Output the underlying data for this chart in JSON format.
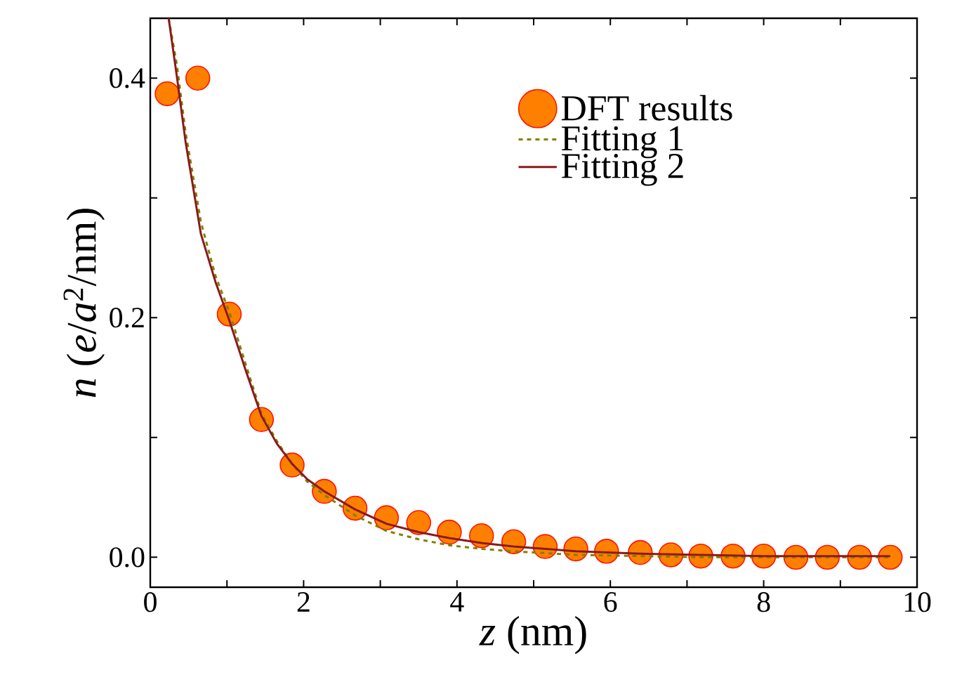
{
  "chart_data": {
    "type": "line",
    "xlabel": "*z* (nm)",
    "ylabel": "*n* (*e*/*a*$^{2}$/nm)",
    "xlim": [
      0,
      10
    ],
    "ylim": [
      -0.025,
      0.45
    ],
    "xticks": [
      0,
      {
        "value": 1,
        "label": null
      },
      2,
      {
        "value": 3,
        "label": null
      },
      4,
      {
        "value": 5,
        "label": null
      },
      6,
      {
        "value": 7,
        "label": null
      },
      8,
      {
        "value": 9,
        "label": null
      },
      10
    ],
    "yticks": [
      {
        "value": 0,
        "label": "0.0"
      },
      {
        "value": 0.1,
        "label": null
      },
      {
        "value": 0.2,
        "label": "0.2"
      },
      {
        "value": 0.3,
        "label": null
      },
      {
        "value": 0.4,
        "label": "0.4"
      }
    ],
    "legend": "top right",
    "series": [
      {
        "name": "DFT results",
        "type": "scatter",
        "marker": "circle",
        "color": "#ff8000",
        "x": [
          0.22,
          0.62,
          1.03,
          1.45,
          1.85,
          2.27,
          2.67,
          3.08,
          3.5,
          3.9,
          4.32,
          4.74,
          5.15,
          5.55,
          5.95,
          6.39,
          6.79,
          7.18,
          7.6,
          8.0,
          8.42,
          8.83,
          9.25,
          9.65
        ],
        "values": [
          0.387,
          0.4,
          0.203,
          0.115,
          0.077,
          0.055,
          0.041,
          0.033,
          0.029,
          0.021,
          0.018,
          0.013,
          0.009,
          0.007,
          0.005,
          0.004,
          0.002,
          0.001,
          0.001,
          0.001,
          0,
          0,
          0,
          0
        ]
      },
      {
        "name": "Fitting 1",
        "type": "line",
        "line_style": "dashed",
        "color": "#808000",
        "x": [
          0.24,
          0.35,
          0.46,
          0.66,
          0.85,
          1.03,
          1.25,
          1.45,
          1.65,
          1.85,
          2.05,
          2.27,
          2.67,
          3.08,
          3.5,
          3.9,
          4.32,
          4.74,
          5.55,
          6.39,
          7.18,
          8.0,
          9.65
        ],
        "values": [
          0.45,
          0.41,
          0.355,
          0.28,
          0.235,
          0.205,
          0.16,
          0.12,
          0.097,
          0.078,
          0.063,
          0.052,
          0.035,
          0.022,
          0.015,
          0.01,
          0.007,
          0.005,
          0.002,
          0.001,
          0,
          0,
          0
        ]
      },
      {
        "name": "Fitting 2",
        "type": "line",
        "line_style": "solid",
        "color": "#8b1a1a",
        "x": [
          0.24,
          0.35,
          0.46,
          0.66,
          0.85,
          1.03,
          1.25,
          1.45,
          1.65,
          1.85,
          2.05,
          2.27,
          2.67,
          3.08,
          3.5,
          3.9,
          4.32,
          4.74,
          5.55,
          6.39,
          7.18,
          8.0,
          9.65
        ],
        "values": [
          0.45,
          0.4,
          0.347,
          0.27,
          0.23,
          0.198,
          0.155,
          0.118,
          0.095,
          0.078,
          0.065,
          0.055,
          0.04,
          0.028,
          0.021,
          0.016,
          0.012,
          0.009,
          0.005,
          0.003,
          0.002,
          0.001,
          0.001
        ]
      }
    ]
  }
}
